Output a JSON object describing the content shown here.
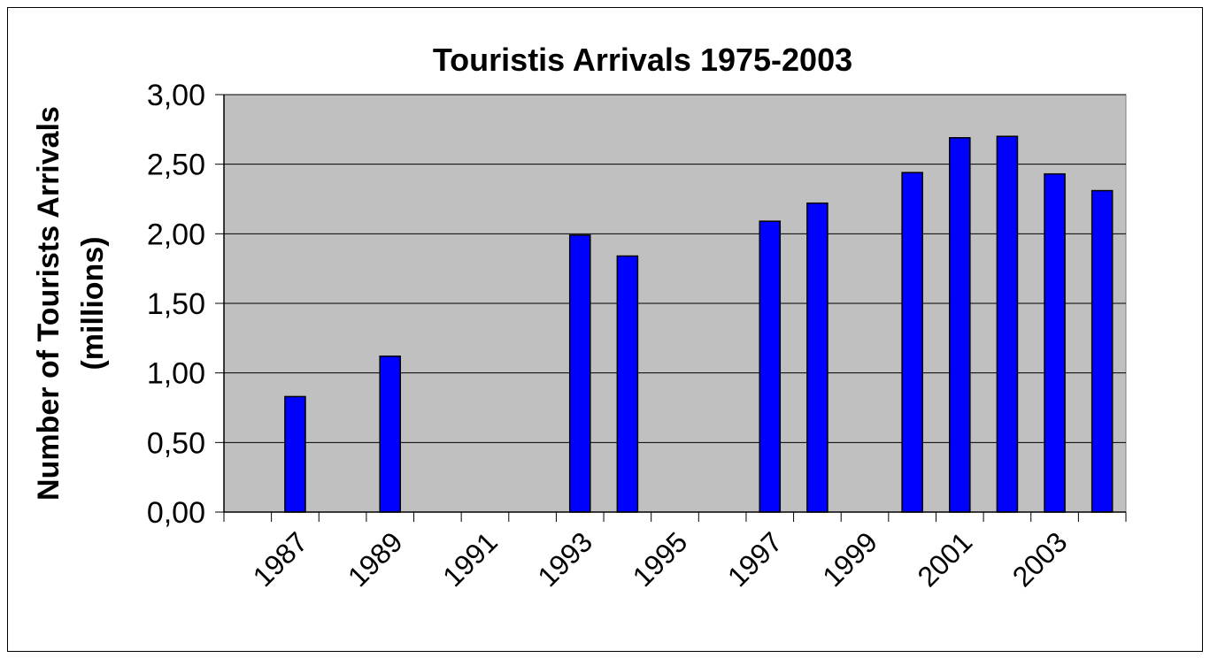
{
  "chart_data": {
    "type": "bar",
    "title": "Touristis Arrivals 1975-2003",
    "y_label": [
      "Number of Tourists Arrivals",
      "(millions)"
    ],
    "categories": [
      null,
      "1987",
      null,
      "1989",
      null,
      "1991",
      null,
      "1993",
      null,
      "1995",
      null,
      "1997",
      null,
      "1999",
      null,
      "2001",
      null,
      "2003",
      null
    ],
    "values": [
      null,
      0.83,
      null,
      1.12,
      null,
      null,
      null,
      1.99,
      1.84,
      null,
      null,
      2.09,
      2.22,
      null,
      2.44,
      2.69,
      2.7,
      2.43,
      2.31
    ],
    "color": "#0000ff",
    "plot_background": "#c0c0c0",
    "ylim": [
      0,
      3
    ],
    "yticks": [
      {
        "value": 0,
        "label": "0,00"
      },
      {
        "value": 0.5,
        "label": "0,50"
      },
      {
        "value": 1,
        "label": "1,00"
      },
      {
        "value": 1.5,
        "label": "1,50"
      },
      {
        "value": 2,
        "label": "2,00"
      },
      {
        "value": 2.5,
        "label": "2,50"
      },
      {
        "value": 3,
        "label": "3,00"
      }
    ],
    "grid": true
  }
}
